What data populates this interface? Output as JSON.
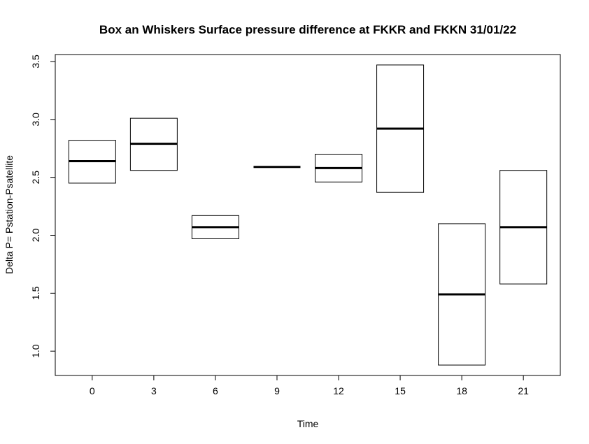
{
  "chart_data": {
    "type": "box",
    "title": "Box an Whiskers Surface pressure difference at FKKR and FKKN 31/01/22",
    "xlabel": "Time",
    "ylabel": "Delta P= Pstation-Psatellite",
    "categories": [
      "0",
      "3",
      "6",
      "9",
      "12",
      "15",
      "18",
      "21"
    ],
    "boxes": [
      {
        "category": "0",
        "q1": 2.45,
        "median": 2.64,
        "q3": 2.82
      },
      {
        "category": "3",
        "q1": 2.56,
        "median": 2.79,
        "q3": 3.01
      },
      {
        "category": "6",
        "q1": 1.97,
        "median": 2.07,
        "q3": 2.17
      },
      {
        "category": "9",
        "q1": 2.59,
        "median": 2.59,
        "q3": 2.59
      },
      {
        "category": "12",
        "q1": 2.46,
        "median": 2.58,
        "q3": 2.7
      },
      {
        "category": "15",
        "q1": 2.37,
        "median": 2.92,
        "q3": 3.47
      },
      {
        "category": "18",
        "q1": 0.88,
        "median": 1.49,
        "q3": 2.1
      },
      {
        "category": "21",
        "q1": 1.58,
        "median": 2.07,
        "q3": 2.56
      }
    ],
    "y_ticks": [
      "1.0",
      "1.5",
      "2.0",
      "2.5",
      "3.0",
      "3.5"
    ],
    "ylim": [
      0.79,
      3.56
    ],
    "grid": false,
    "legend": "none"
  }
}
